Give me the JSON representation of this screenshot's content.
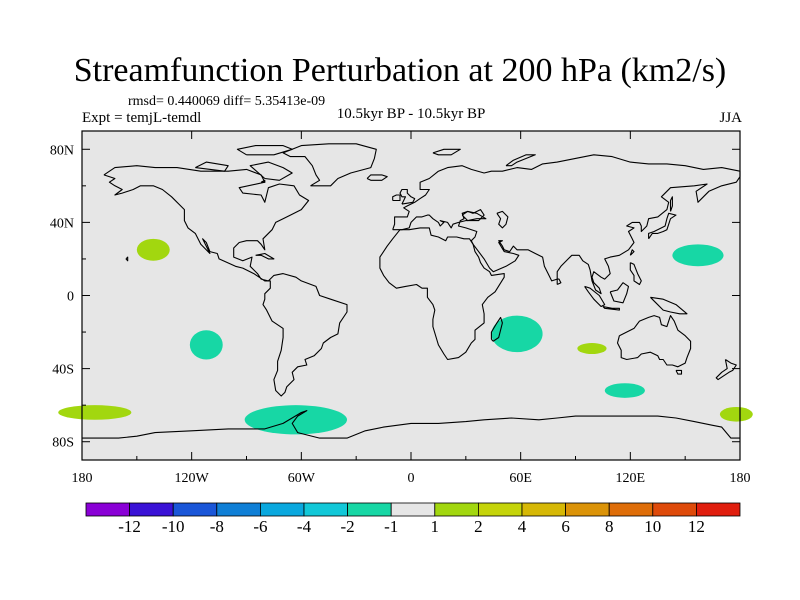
{
  "chart_data": {
    "type": "contour-map",
    "title": "Streamfunction Perturbation at 200 hPa (km2/s)",
    "stats": "rmsd= 0.440069 diff= 5.35413e-09",
    "left_label": "Expt = temjL-temdl",
    "center_label": "10.5kyr BP - 10.5kyr BP",
    "right_label": "JJA",
    "lon_range": [
      -180,
      180
    ],
    "lat_range": [
      -90,
      90
    ],
    "x_ticks": [
      {
        "lon": -180,
        "label": "180"
      },
      {
        "lon": -120,
        "label": "120W"
      },
      {
        "lon": -60,
        "label": "60W"
      },
      {
        "lon": 0,
        "label": "0"
      },
      {
        "lon": 60,
        "label": "60E"
      },
      {
        "lon": 120,
        "label": "120E"
      },
      {
        "lon": 180,
        "label": "180"
      }
    ],
    "y_ticks": [
      {
        "lat": 80,
        "label": "80N"
      },
      {
        "lat": 40,
        "label": "40N"
      },
      {
        "lat": 0,
        "label": "0"
      },
      {
        "lat": -40,
        "label": "40S"
      },
      {
        "lat": -80,
        "label": "80S"
      }
    ],
    "background_level": "-1 to 1",
    "anomalies": [
      {
        "lon": -141,
        "lat": 25,
        "rlon": 9,
        "rlat": 6,
        "level": "1 to 2"
      },
      {
        "lon": -112,
        "lat": -27,
        "rlon": 9,
        "rlat": 8,
        "level": "-2 to -1"
      },
      {
        "lon": -63,
        "lat": -68,
        "rlon": 28,
        "rlat": 8,
        "level": "-2 to -1"
      },
      {
        "lon": -173,
        "lat": -64,
        "rlon": 20,
        "rlat": 4,
        "level": "1 to 2"
      },
      {
        "lon": 58,
        "lat": -21,
        "rlon": 14,
        "rlat": 10,
        "level": "-2 to -1"
      },
      {
        "lon": 99,
        "lat": -29,
        "rlon": 8,
        "rlat": 3,
        "level": "1 to 2"
      },
      {
        "lon": 117,
        "lat": -52,
        "rlon": 11,
        "rlat": 4,
        "level": "-2 to -1"
      },
      {
        "lon": 157,
        "lat": 22,
        "rlon": 14,
        "rlat": 6,
        "level": "-2 to -1"
      },
      {
        "lon": 178,
        "lat": -65,
        "rlon": 9,
        "rlat": 4,
        "level": "1 to 2"
      }
    ],
    "colorbar": {
      "colors": [
        "#8a00d6",
        "#3a12d6",
        "#1a56d8",
        "#0f7fd6",
        "#0aa8de",
        "#12c8d8",
        "#17d7a5",
        "#e6e6e6",
        "#a2d70f",
        "#c5d40a",
        "#d6b806",
        "#db9308",
        "#de6d08",
        "#de4a0a",
        "#e01e0e"
      ],
      "labels": [
        "-12",
        "-10",
        "-8",
        "-6",
        "-4",
        "-2",
        "-1",
        "1",
        "2",
        "4",
        "6",
        "8",
        "10",
        "12"
      ]
    },
    "level_colors": {
      "-2 to -1": "#17d7a5",
      "-1 to 1": "#e6e6e6",
      "1 to 2": "#a2d70f"
    }
  }
}
